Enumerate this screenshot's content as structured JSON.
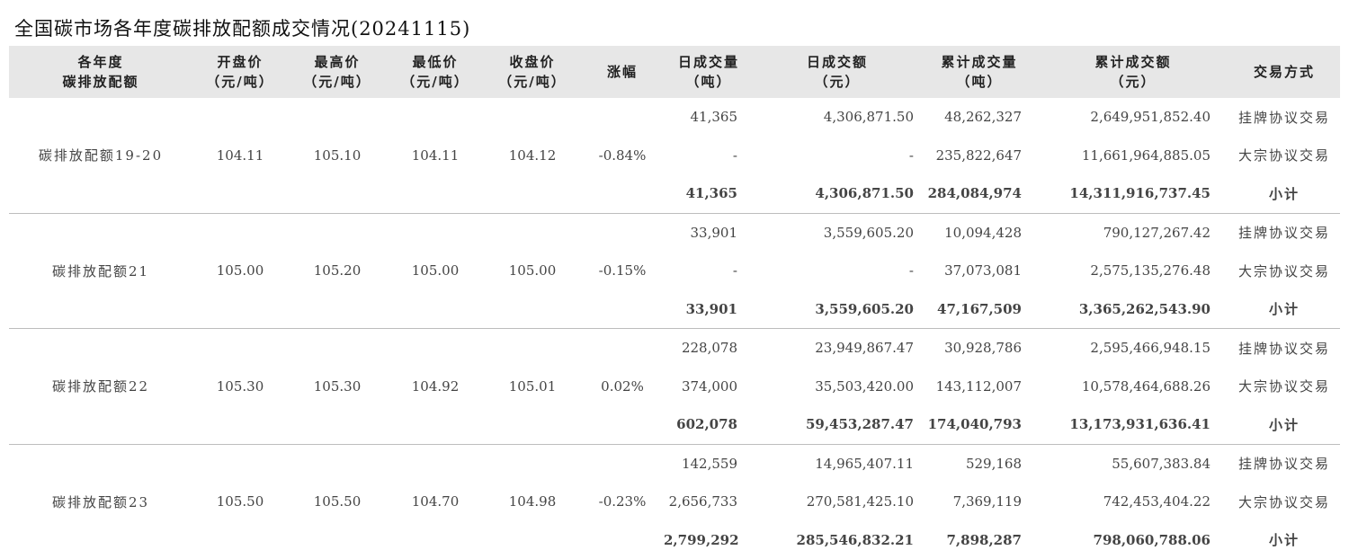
{
  "title": "全国碳市场各年度碳排放配额成交情况(20241115)",
  "headers": {
    "quota": [
      "各年度",
      "碳排放配额"
    ],
    "open": [
      "开盘价",
      "（元/吨）"
    ],
    "high": [
      "最高价",
      "（元/吨）"
    ],
    "low": [
      "最低价",
      "（元/吨）"
    ],
    "close": [
      "收盘价",
      "（元/吨）"
    ],
    "change": [
      "涨幅"
    ],
    "daily_volume": [
      "日成交量",
      "（吨）"
    ],
    "daily_amount": [
      "日成交额",
      "（元）"
    ],
    "cum_volume": [
      "累计成交量",
      "（吨）"
    ],
    "cum_amount": [
      "累计成交额",
      "（元）"
    ],
    "mode": [
      "交易方式"
    ]
  },
  "groups": [
    {
      "name": "碳排放配额19-20",
      "open": "104.11",
      "high": "105.10",
      "low": "104.11",
      "close": "104.12",
      "change": "-0.84%",
      "rows": [
        {
          "daily_volume": "41,365",
          "daily_amount": "4,306,871.50",
          "cum_volume": "48,262,327",
          "cum_amount": "2,649,951,852.40",
          "mode": "挂牌协议交易"
        },
        {
          "daily_volume": "-",
          "daily_amount": "-",
          "cum_volume": "235,822,647",
          "cum_amount": "11,661,964,885.05",
          "mode": "大宗协议交易"
        },
        {
          "daily_volume": "41,365",
          "daily_amount": "4,306,871.50",
          "cum_volume": "284,084,974",
          "cum_amount": "14,311,916,737.45",
          "mode": "小计"
        }
      ]
    },
    {
      "name": "碳排放配额21",
      "open": "105.00",
      "high": "105.20",
      "low": "105.00",
      "close": "105.00",
      "change": "-0.15%",
      "rows": [
        {
          "daily_volume": "33,901",
          "daily_amount": "3,559,605.20",
          "cum_volume": "10,094,428",
          "cum_amount": "790,127,267.42",
          "mode": "挂牌协议交易"
        },
        {
          "daily_volume": "-",
          "daily_amount": "-",
          "cum_volume": "37,073,081",
          "cum_amount": "2,575,135,276.48",
          "mode": "大宗协议交易"
        },
        {
          "daily_volume": "33,901",
          "daily_amount": "3,559,605.20",
          "cum_volume": "47,167,509",
          "cum_amount": "3,365,262,543.90",
          "mode": "小计"
        }
      ]
    },
    {
      "name": "碳排放配额22",
      "open": "105.30",
      "high": "105.30",
      "low": "104.92",
      "close": "105.01",
      "change": "0.02%",
      "rows": [
        {
          "daily_volume": "228,078",
          "daily_amount": "23,949,867.47",
          "cum_volume": "30,928,786",
          "cum_amount": "2,595,466,948.15",
          "mode": "挂牌协议交易"
        },
        {
          "daily_volume": "374,000",
          "daily_amount": "35,503,420.00",
          "cum_volume": "143,112,007",
          "cum_amount": "10,578,464,688.26",
          "mode": "大宗协议交易"
        },
        {
          "daily_volume": "602,078",
          "daily_amount": "59,453,287.47",
          "cum_volume": "174,040,793",
          "cum_amount": "13,173,931,636.41",
          "mode": "小计"
        }
      ]
    },
    {
      "name": "碳排放配额23",
      "open": "105.50",
      "high": "105.50",
      "low": "104.70",
      "close": "104.98",
      "change": "-0.23%",
      "rows": [
        {
          "daily_volume": "142,559",
          "daily_amount": "14,965,407.11",
          "cum_volume": "529,168",
          "cum_amount": "55,607,383.84",
          "mode": "挂牌协议交易"
        },
        {
          "daily_volume": "2,656,733",
          "daily_amount": "270,581,425.10",
          "cum_volume": "7,369,119",
          "cum_amount": "742,453,404.22",
          "mode": "大宗协议交易"
        },
        {
          "daily_volume": "2,799,292",
          "daily_amount": "285,546,832.21",
          "cum_volume": "7,898,287",
          "cum_amount": "798,060,788.06",
          "mode": "小计"
        }
      ]
    }
  ]
}
